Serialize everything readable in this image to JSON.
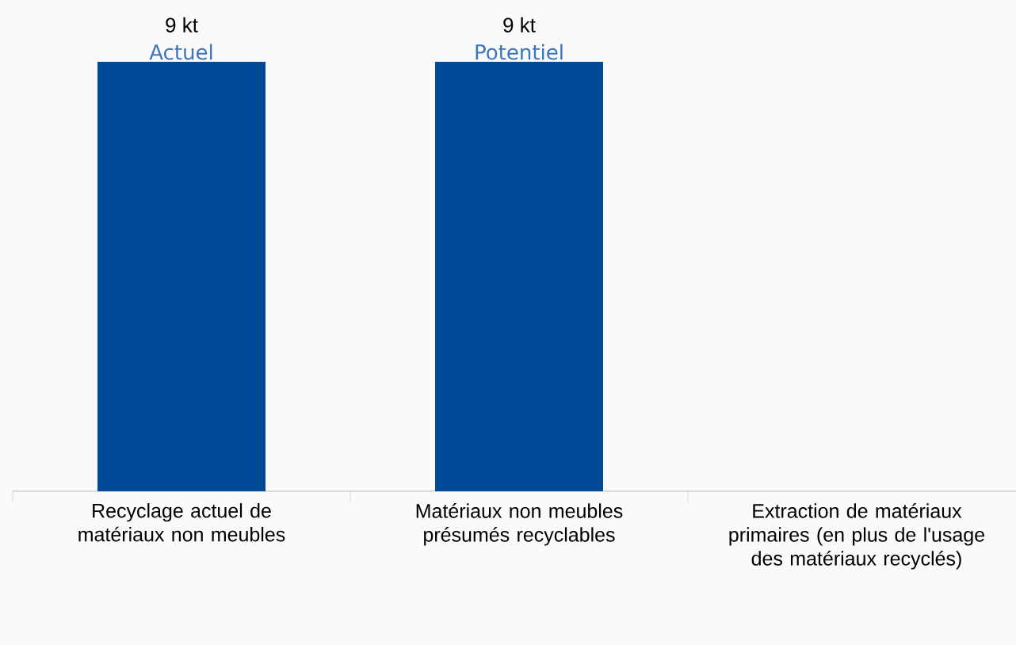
{
  "chart_data": {
    "type": "bar",
    "categories": [
      "Recyclage actuel de matériaux non meubles",
      "Matériaux non meubles présumés recyclables",
      "Extraction de matériaux primaires (en plus de l'usage des matériaux recyclés)"
    ],
    "values": [
      9,
      9,
      null
    ],
    "color": "#004a98",
    "value_labels": [
      "9 kt",
      "9 kt",
      null
    ],
    "annotations": [
      {
        "text": "Actuel",
        "x": "Recyclage actuel de matériaux non meubles",
        "y": 9
      },
      {
        "text": "Potentiel",
        "x": "Matériaux non meubles présumés recyclables",
        "y": 9
      }
    ]
  }
}
